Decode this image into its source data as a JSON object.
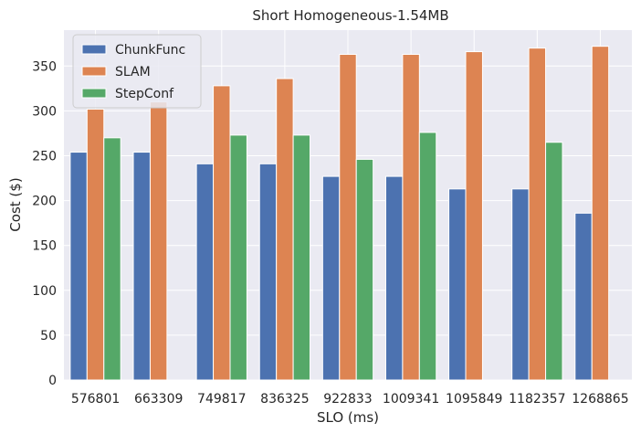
{
  "chart_data": {
    "type": "bar",
    "title": "Short Homogeneous-1.54MB",
    "xlabel": "SLO (ms)",
    "ylabel": "Cost ($)",
    "categories": [
      "576801",
      "663309",
      "749817",
      "836325",
      "922833",
      "1009341",
      "1095849",
      "1182357",
      "1268865"
    ],
    "ylim": [
      0,
      390
    ],
    "yticks": [
      0,
      50,
      100,
      150,
      200,
      250,
      300,
      350
    ],
    "grid": true,
    "legend_position": "top-left",
    "series": [
      {
        "name": "ChunkFunc",
        "color": "#4c72b0",
        "values": [
          254,
          254,
          241,
          241,
          227,
          227,
          213,
          213,
          186
        ]
      },
      {
        "name": "SLAM",
        "color": "#dd8452",
        "values": [
          302,
          310,
          328,
          336,
          363,
          363,
          366,
          370,
          372
        ]
      },
      {
        "name": "StepConf",
        "color": "#55a868",
        "values": [
          270,
          null,
          273,
          273,
          246,
          276,
          null,
          265,
          null
        ]
      }
    ],
    "colors": {
      "background": "#eaeaf2",
      "grid": "#ffffff",
      "text": "#262626"
    }
  }
}
